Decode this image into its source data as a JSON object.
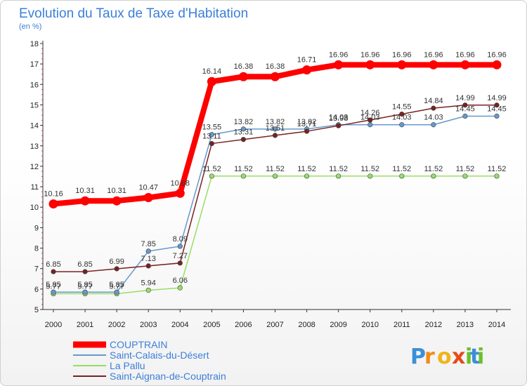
{
  "chart_data": {
    "type": "line",
    "title": "Evolution du Taux de Taxe d'Habitation",
    "subtitle": "(en %)",
    "xlabel": "",
    "ylabel": "",
    "ylim": [
      5,
      18
    ],
    "yticks": [
      5,
      6,
      7,
      8,
      9,
      10,
      11,
      12,
      13,
      14,
      15,
      16,
      17,
      18
    ],
    "grid": false,
    "legend_position": "bottom-left",
    "x": [
      "2000",
      "2001",
      "2002",
      "2003",
      "2004",
      "2005",
      "2006",
      "2007",
      "2008",
      "2009",
      "2010",
      "2011",
      "2012",
      "2013",
      "2014"
    ],
    "series": [
      {
        "name": "COUPTRAIN",
        "color": "#ff0000",
        "values": [
          10.16,
          10.31,
          10.31,
          10.47,
          10.68,
          16.14,
          16.38,
          16.38,
          16.71,
          16.96,
          16.96,
          16.96,
          16.96,
          16.96,
          16.96
        ],
        "labels": [
          "10.16",
          "10.31",
          "10.31",
          "10.47",
          "10.68",
          "16.14",
          "16.38",
          "16.38",
          "16.71",
          "16.96",
          "16.96",
          "16.96",
          "16.96",
          "16.96",
          "16.96"
        ]
      },
      {
        "name": "Saint-Calais-du-Désert",
        "color": "#6699cc",
        "values": [
          5.85,
          5.85,
          5.85,
          7.85,
          8.09,
          13.55,
          13.82,
          13.82,
          13.82,
          14.03,
          14.03,
          14.03,
          14.03,
          14.45,
          14.45
        ],
        "labels": [
          "5.85",
          "5.85",
          "5.85",
          "7.85",
          "8.09",
          "13.55",
          "13.82",
          "13.82",
          "13.82",
          "14.03",
          "14.03",
          "14.03",
          "14.03",
          "14.45",
          "14.45"
        ]
      },
      {
        "name": "La Pallu",
        "color": "#99dd66",
        "values": [
          5.77,
          5.77,
          5.77,
          5.94,
          6.06,
          11.52,
          11.52,
          11.52,
          11.52,
          11.52,
          11.52,
          11.52,
          11.52,
          11.52,
          11.52
        ],
        "labels": [
          "5.77",
          "5.77",
          "5.77",
          "5.94",
          "6.06",
          "11.52",
          "11.52",
          "11.52",
          "11.52",
          "11.52",
          "11.52",
          "11.52",
          "11.52",
          "11.52",
          "11.52"
        ]
      },
      {
        "name": "Saint-Aignan-de-Couptrain",
        "color": "#772222",
        "values": [
          6.85,
          6.85,
          6.99,
          7.13,
          7.27,
          13.11,
          13.31,
          13.51,
          13.71,
          13.98,
          14.26,
          14.55,
          14.84,
          14.99,
          14.99
        ],
        "labels": [
          "6.85",
          "6.85",
          "6.99",
          "7.13",
          "7.27",
          "13.11",
          "13.31",
          "13.51",
          "13.71",
          "13.98",
          "14.26",
          "14.55",
          "14.84",
          "14.99",
          "14.99"
        ]
      }
    ]
  },
  "brand": {
    "logo_letters": [
      "P",
      "r",
      "o",
      "x",
      "i",
      "t",
      "i"
    ],
    "logo_colors": [
      "#3b8fd9",
      "#f08c1a",
      "#f0b41a",
      "#e84a1a",
      "#6cbf2a",
      "#3b8fd9",
      "#6cbf2a"
    ]
  }
}
